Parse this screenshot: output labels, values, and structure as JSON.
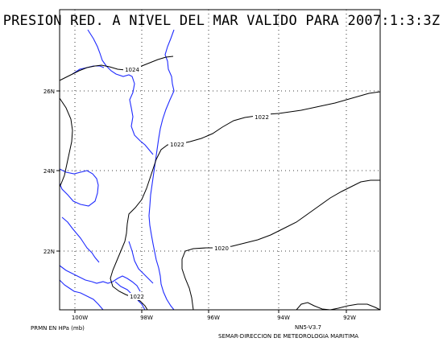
{
  "title": "PRESION RED. A NIVEL DEL MAR VALIDO PARA 2007:1:3:3Z",
  "units_label": "PRMN EN HPa (mb)",
  "model_label": "NN5-V3.7",
  "agency_label": "SEMAR-DIRECCION DE METEOROLOGIA MARITIMA",
  "lon_ticks": [
    "100W",
    "98W",
    "96W",
    "94W",
    "92W"
  ],
  "lat_ticks": [
    "26N",
    "24N",
    "22N"
  ],
  "contours": [
    {
      "label": "1024",
      "value": 1024
    },
    {
      "label": "1022",
      "value": 1022
    },
    {
      "label": "1022",
      "value": 1022
    },
    {
      "label": "1020",
      "value": 1020
    },
    {
      "label": "1022",
      "value": 1022
    }
  ],
  "colors": {
    "coastline": "#1f2bff",
    "contour": "#000000",
    "grid": "#000000"
  }
}
